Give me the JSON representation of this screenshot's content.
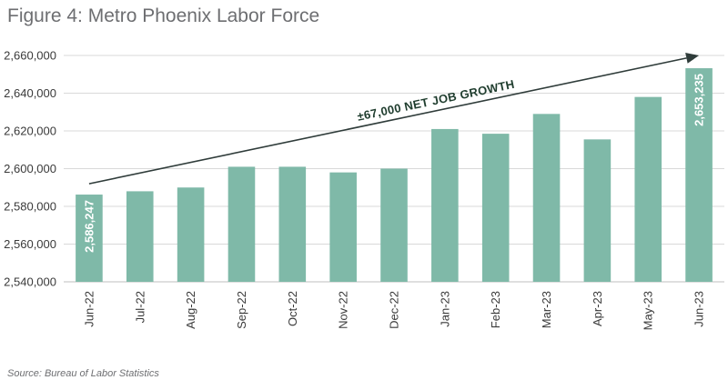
{
  "title": "Figure 4: Metro Phoenix Labor Force",
  "source": "Source: Bureau of Labor Statistics",
  "chart_data": {
    "type": "bar",
    "categories": [
      "Jun-22",
      "Jul-22",
      "Aug-22",
      "Sep-22",
      "Oct-22",
      "Nov-22",
      "Dec-22",
      "Jan-23",
      "Feb-23",
      "Mar-23",
      "Apr-23",
      "May-23",
      "Jun-23"
    ],
    "values": [
      2586247,
      2588000,
      2590000,
      2601000,
      2601000,
      2598000,
      2600000,
      2621000,
      2618500,
      2629000,
      2615500,
      2638000,
      2653235
    ],
    "ylim": [
      2540000,
      2660000
    ],
    "yticks": [
      2540000,
      2560000,
      2580000,
      2600000,
      2620000,
      2640000,
      2660000
    ],
    "ytick_labels": [
      "2,540,000",
      "2,560,000",
      "2,580,000",
      "2,600,000",
      "2,620,000",
      "2,640,000",
      "2,660,000"
    ],
    "data_labels": [
      {
        "index": 0,
        "text": "2,586,247"
      },
      {
        "index": 12,
        "text": "2,653,235"
      }
    ],
    "annotation": {
      "text": "±67,000 NET JOB GROWTH",
      "from": {
        "category": "Jun-22",
        "value": 2592000
      },
      "to": {
        "category": "Jun-23",
        "value": 2660000
      }
    },
    "grid": true,
    "bar_color": "#7fb9a8",
    "grid_color": "#d9d9d9",
    "arrow_color": "#2f3c3a"
  }
}
